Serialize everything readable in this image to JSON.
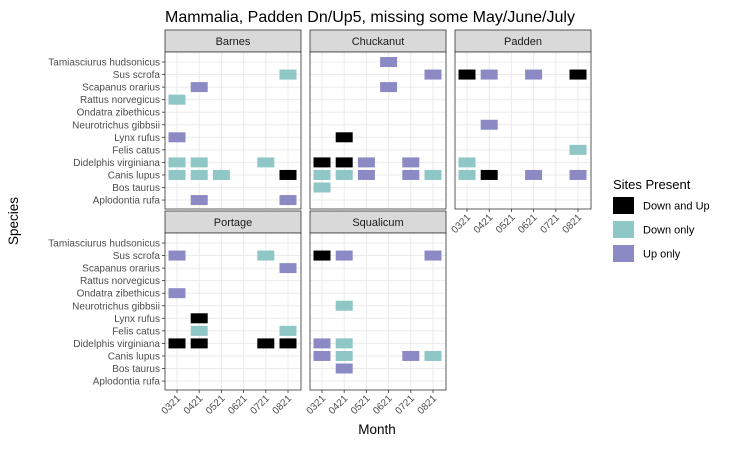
{
  "chart_data": {
    "type": "heatmap",
    "title": "Mammalia, Padden Dn/Up5, missing some May/June/July",
    "xlabel": "Month",
    "ylabel": "Species",
    "months": [
      "0321",
      "0421",
      "0521",
      "0621",
      "0721",
      "0821"
    ],
    "species": [
      "Tamiasciurus hudsonicus",
      "Sus scrofa",
      "Scapanus orarius",
      "Rattus norvegicus",
      "Ondatra zibethicus",
      "Neurotrichus gibbsii",
      "Lynx rufus",
      "Felis catus",
      "Didelphis virginiana",
      "Canis lupus",
      "Bos taurus",
      "Aplodontia rufa"
    ],
    "legend": {
      "title": "Sites Present",
      "position": "right",
      "entries": [
        {
          "key": "both",
          "label": "Down and Up",
          "color": "#000000"
        },
        {
          "key": "down",
          "label": "Down only",
          "color": "#8fc6c6"
        },
        {
          "key": "up",
          "label": "Up only",
          "color": "#8b8ac4"
        }
      ]
    },
    "grid": true,
    "panels": [
      {
        "name": "Barnes",
        "cells": [
          {
            "species": "Sus scrofa",
            "month": "0821",
            "status": "down"
          },
          {
            "species": "Scapanus orarius",
            "month": "0421",
            "status": "up"
          },
          {
            "species": "Rattus norvegicus",
            "month": "0321",
            "status": "down"
          },
          {
            "species": "Lynx rufus",
            "month": "0321",
            "status": "up"
          },
          {
            "species": "Didelphis virginiana",
            "month": "0321",
            "status": "down"
          },
          {
            "species": "Didelphis virginiana",
            "month": "0421",
            "status": "down"
          },
          {
            "species": "Didelphis virginiana",
            "month": "0721",
            "status": "down"
          },
          {
            "species": "Canis lupus",
            "month": "0321",
            "status": "down"
          },
          {
            "species": "Canis lupus",
            "month": "0421",
            "status": "down"
          },
          {
            "species": "Canis lupus",
            "month": "0521",
            "status": "down"
          },
          {
            "species": "Canis lupus",
            "month": "0821",
            "status": "both"
          },
          {
            "species": "Aplodontia rufa",
            "month": "0421",
            "status": "up"
          },
          {
            "species": "Aplodontia rufa",
            "month": "0821",
            "status": "up"
          }
        ]
      },
      {
        "name": "Chuckanut",
        "cells": [
          {
            "species": "Tamiasciurus hudsonicus",
            "month": "0621",
            "status": "up"
          },
          {
            "species": "Sus scrofa",
            "month": "0821",
            "status": "up"
          },
          {
            "species": "Scapanus orarius",
            "month": "0621",
            "status": "up"
          },
          {
            "species": "Lynx rufus",
            "month": "0421",
            "status": "both"
          },
          {
            "species": "Didelphis virginiana",
            "month": "0321",
            "status": "both"
          },
          {
            "species": "Didelphis virginiana",
            "month": "0421",
            "status": "both"
          },
          {
            "species": "Didelphis virginiana",
            "month": "0521",
            "status": "up"
          },
          {
            "species": "Didelphis virginiana",
            "month": "0721",
            "status": "up"
          },
          {
            "species": "Canis lupus",
            "month": "0321",
            "status": "down"
          },
          {
            "species": "Canis lupus",
            "month": "0421",
            "status": "down"
          },
          {
            "species": "Canis lupus",
            "month": "0521",
            "status": "up"
          },
          {
            "species": "Canis lupus",
            "month": "0721",
            "status": "up"
          },
          {
            "species": "Canis lupus",
            "month": "0821",
            "status": "down"
          },
          {
            "species": "Bos taurus",
            "month": "0321",
            "status": "down"
          }
        ]
      },
      {
        "name": "Padden",
        "cells": [
          {
            "species": "Sus scrofa",
            "month": "0321",
            "status": "both"
          },
          {
            "species": "Sus scrofa",
            "month": "0421",
            "status": "up"
          },
          {
            "species": "Sus scrofa",
            "month": "0621",
            "status": "up"
          },
          {
            "species": "Sus scrofa",
            "month": "0821",
            "status": "both"
          },
          {
            "species": "Neurotrichus gibbsii",
            "month": "0421",
            "status": "up"
          },
          {
            "species": "Felis catus",
            "month": "0821",
            "status": "down"
          },
          {
            "species": "Didelphis virginiana",
            "month": "0321",
            "status": "down"
          },
          {
            "species": "Canis lupus",
            "month": "0321",
            "status": "down"
          },
          {
            "species": "Canis lupus",
            "month": "0421",
            "status": "both"
          },
          {
            "species": "Canis lupus",
            "month": "0621",
            "status": "up"
          },
          {
            "species": "Canis lupus",
            "month": "0821",
            "status": "up"
          }
        ]
      },
      {
        "name": "Portage",
        "cells": [
          {
            "species": "Sus scrofa",
            "month": "0321",
            "status": "up"
          },
          {
            "species": "Sus scrofa",
            "month": "0721",
            "status": "down"
          },
          {
            "species": "Scapanus orarius",
            "month": "0821",
            "status": "up"
          },
          {
            "species": "Ondatra zibethicus",
            "month": "0321",
            "status": "up"
          },
          {
            "species": "Lynx rufus",
            "month": "0421",
            "status": "both"
          },
          {
            "species": "Felis catus",
            "month": "0421",
            "status": "down"
          },
          {
            "species": "Felis catus",
            "month": "0821",
            "status": "down"
          },
          {
            "species": "Didelphis virginiana",
            "month": "0321",
            "status": "both"
          },
          {
            "species": "Didelphis virginiana",
            "month": "0421",
            "status": "both"
          },
          {
            "species": "Didelphis virginiana",
            "month": "0721",
            "status": "both"
          },
          {
            "species": "Didelphis virginiana",
            "month": "0821",
            "status": "both"
          }
        ]
      },
      {
        "name": "Squalicum",
        "cells": [
          {
            "species": "Sus scrofa",
            "month": "0321",
            "status": "both"
          },
          {
            "species": "Sus scrofa",
            "month": "0421",
            "status": "up"
          },
          {
            "species": "Sus scrofa",
            "month": "0821",
            "status": "up"
          },
          {
            "species": "Neurotrichus gibbsii",
            "month": "0421",
            "status": "down"
          },
          {
            "species": "Didelphis virginiana",
            "month": "0321",
            "status": "up"
          },
          {
            "species": "Didelphis virginiana",
            "month": "0421",
            "status": "down"
          },
          {
            "species": "Canis lupus",
            "month": "0321",
            "status": "up"
          },
          {
            "species": "Canis lupus",
            "month": "0421",
            "status": "down"
          },
          {
            "species": "Canis lupus",
            "month": "0721",
            "status": "up"
          },
          {
            "species": "Canis lupus",
            "month": "0821",
            "status": "down"
          },
          {
            "species": "Bos taurus",
            "month": "0421",
            "status": "up"
          }
        ]
      }
    ]
  }
}
